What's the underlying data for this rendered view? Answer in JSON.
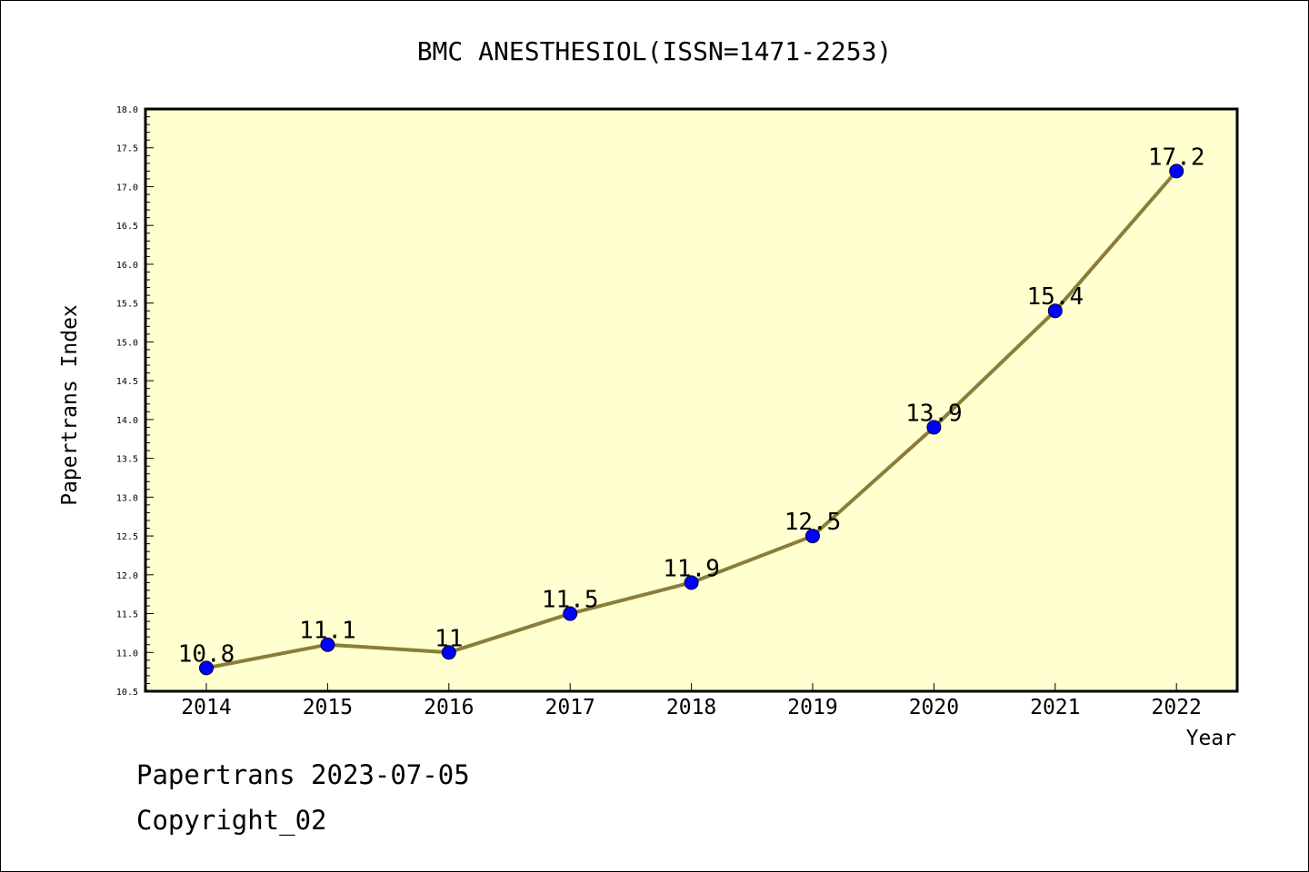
{
  "chart_data": {
    "type": "line",
    "title": "BMC ANESTHESIOL(ISSN=1471-2253)",
    "xlabel": "Year",
    "ylabel": "Papertrans Index",
    "categories": [
      "2014",
      "2015",
      "2016",
      "2017",
      "2018",
      "2019",
      "2020",
      "2021",
      "2022"
    ],
    "series": [
      {
        "values": [
          10.8,
          11.1,
          11,
          11.5,
          11.9,
          12.5,
          13.9,
          15.4,
          17.2
        ]
      }
    ],
    "data_labels": [
      "10.8",
      "11.1",
      "11",
      "11.5",
      "11.9",
      "12.5",
      "13.9",
      "15.4",
      "17.2"
    ],
    "ylim": [
      10.5,
      18.0
    ],
    "yticks": [
      "10.5",
      "11.0",
      "11.5",
      "12.0",
      "12.5",
      "13.0",
      "13.5",
      "14.0",
      "14.5",
      "15.0",
      "15.5",
      "16.0",
      "16.5",
      "17.0",
      "17.5",
      "18.0"
    ],
    "grid": false,
    "legend": "none",
    "colors": {
      "plot_background": "#ffffd0",
      "line": "#8b7d3a",
      "marker": "#0000ff"
    }
  },
  "footer": {
    "line1": "Papertrans 2023-07-05",
    "line2": "Copyright_02"
  }
}
